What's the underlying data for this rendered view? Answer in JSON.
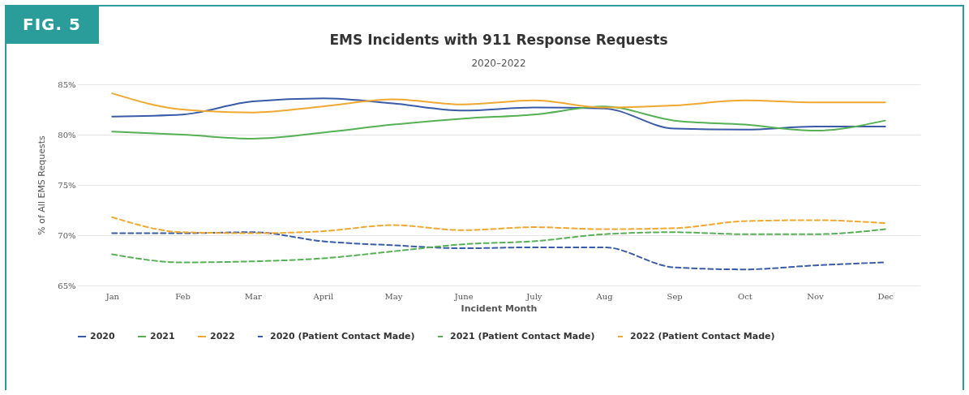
{
  "chart_data": {
    "type": "line",
    "title": "EMS Incidents with 911 Response Requests",
    "subtitle": "2020–2022",
    "xlabel": "Incident Month",
    "ylabel": "% of All EMS Requests",
    "annotations": [
      "FIG. 5"
    ],
    "categories": [
      "Jan",
      "Feb",
      "Mar",
      "April",
      "May",
      "June",
      "July",
      "Aug",
      "Sep",
      "Oct",
      "Nov",
      "Dec"
    ],
    "series": [
      {
        "name": "2020",
        "color": "#3a5ba8",
        "line_style": "solid",
        "values": [
          81.8,
          82.0,
          83.3,
          83.6,
          83.1,
          82.4,
          82.7,
          82.6,
          80.6,
          80.5,
          80.8,
          80.8
        ]
      },
      {
        "name": "2021",
        "color": "#56b054",
        "line_style": "solid",
        "values": [
          80.3,
          80.0,
          79.6,
          80.2,
          81.0,
          81.6,
          82.0,
          82.8,
          81.4,
          81.0,
          80.4,
          81.4
        ]
      },
      {
        "name": "2022",
        "color": "#f0a830",
        "line_style": "solid",
        "values": [
          84.1,
          82.5,
          82.2,
          82.8,
          83.5,
          83.0,
          83.4,
          82.7,
          82.9,
          83.4,
          83.2,
          83.2
        ]
      },
      {
        "name": "2020 (Patient Contact Made)",
        "color": "#3a5ba8",
        "line_style": "dashed",
        "values": [
          70.2,
          70.2,
          70.3,
          69.4,
          69.0,
          68.7,
          68.8,
          68.8,
          66.8,
          66.6,
          67.0,
          67.3
        ]
      },
      {
        "name": "2021 (Patient Contact Made)",
        "color": "#56b054",
        "line_style": "dashed",
        "values": [
          68.1,
          67.3,
          67.4,
          67.7,
          68.4,
          69.1,
          69.4,
          70.1,
          70.3,
          70.1,
          70.1,
          70.6
        ]
      },
      {
        "name": "2022 (Patient Contact Made)",
        "color": "#f0a830",
        "line_style": "dashed",
        "values": [
          71.8,
          70.3,
          70.2,
          70.4,
          71.0,
          70.5,
          70.8,
          70.6,
          70.7,
          71.4,
          71.5,
          71.2
        ]
      }
    ],
    "ylim": [
      65,
      85
    ],
    "yticks": [
      {
        "value": 65,
        "label": "65%"
      },
      {
        "value": 70,
        "label": "70%"
      },
      {
        "value": 75,
        "label": "75%"
      },
      {
        "value": 80,
        "label": "80%"
      },
      {
        "value": 85,
        "label": "85%"
      }
    ],
    "grid": "y",
    "legend": "bottom"
  }
}
